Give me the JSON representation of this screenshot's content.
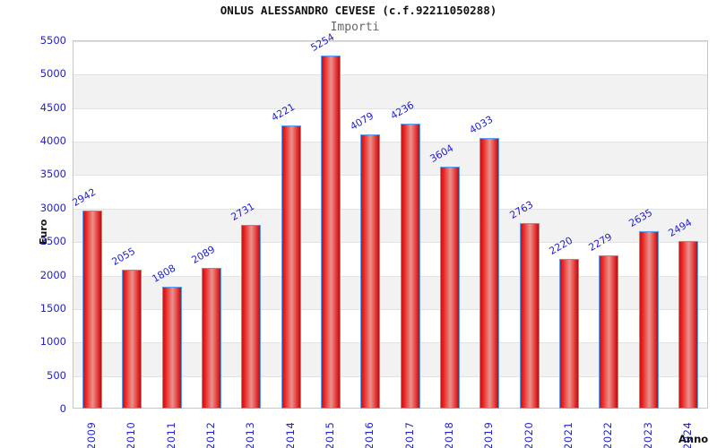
{
  "header": {
    "title": "ONLUS ALESSANDRO CEVESE (c.f.92211050288)",
    "subtitle": "Importi"
  },
  "axes": {
    "y_title": "Euro",
    "x_title": "Anno"
  },
  "colors": {
    "label_blue": "#2222cc",
    "bar_red_edge": "#c41414",
    "bar_red_center": "#e8938d",
    "bar_border_blue": "#5b9ef0",
    "band_gray": "#f2f2f2",
    "plot_border": "#c8c8c8",
    "title_black": "#111111",
    "subtitle_gray": "#666666"
  },
  "chart_data": {
    "type": "bar",
    "title": "ONLUS ALESSANDRO CEVESE (c.f.92211050288)",
    "subtitle": "Importi",
    "xlabel": "Anno",
    "ylabel": "Euro",
    "categories": [
      "2009",
      "2010",
      "2011",
      "2012",
      "2013",
      "2014",
      "2015",
      "2016",
      "2017",
      "2018",
      "2019",
      "2020",
      "2021",
      "2022",
      "2023",
      "2024"
    ],
    "values": [
      2942,
      2055,
      1808,
      2089,
      2731,
      4221,
      5254,
      4079,
      4236,
      3604,
      4033,
      2763,
      2220,
      2279,
      2635,
      2494
    ],
    "ylim": [
      0,
      5500
    ],
    "ytick_step": 500,
    "yticks": [
      0,
      500,
      1000,
      1500,
      2000,
      2500,
      3000,
      3500,
      4000,
      4500,
      5000,
      5500
    ],
    "grid": "alternating-horizontal-bands",
    "legend": "none",
    "bar_value_labels_rotation_deg": -30,
    "x_tick_labels_rotation_deg": -90
  }
}
